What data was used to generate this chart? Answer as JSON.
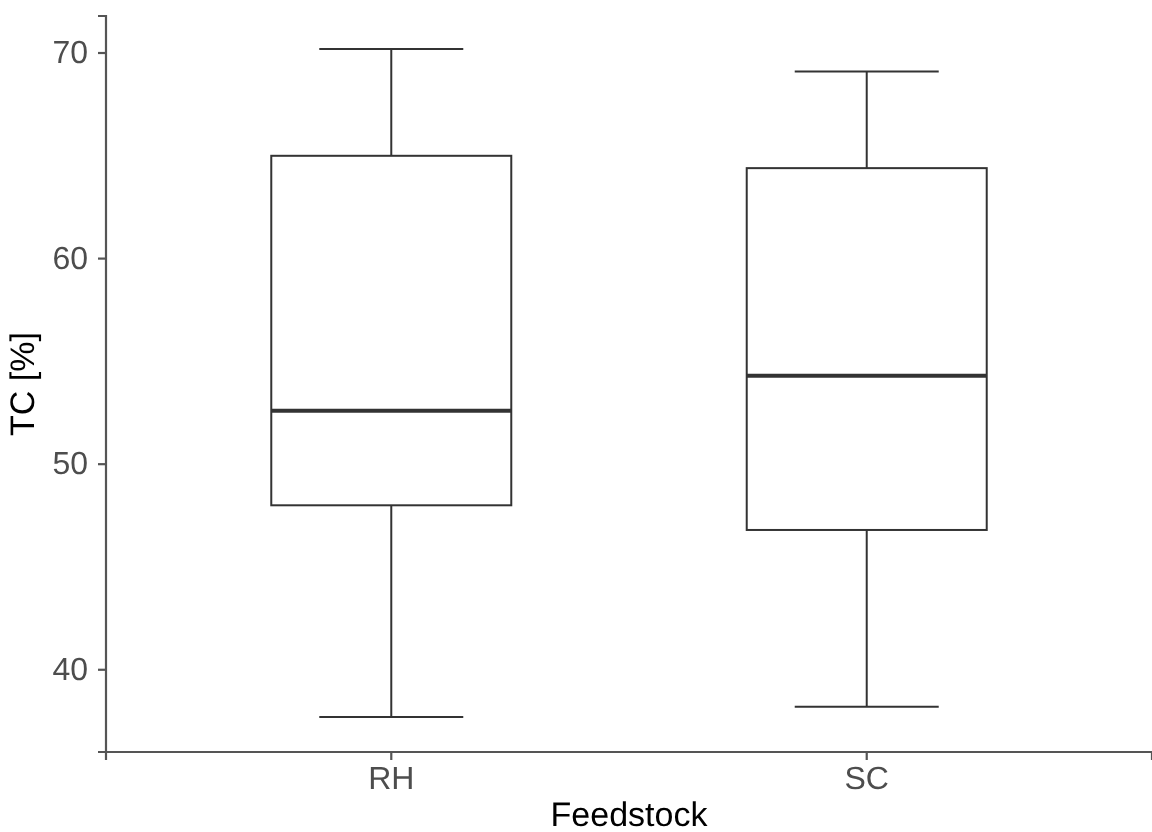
{
  "chart_data": {
    "type": "box",
    "xlabel": "Feedstock",
    "ylabel": "TC [%]",
    "categories": [
      "RH",
      "SC"
    ],
    "boxes": [
      {
        "low": 37.7,
        "q1": 48.0,
        "median": 52.6,
        "q3": 65.0,
        "high": 70.2
      },
      {
        "low": 38.2,
        "q1": 46.8,
        "median": 54.3,
        "q3": 64.4,
        "high": 69.1
      }
    ],
    "color": "#333333",
    "ylim": [
      36,
      71.8
    ],
    "yticks": [
      40,
      50,
      60,
      70
    ],
    "grid": false
  }
}
